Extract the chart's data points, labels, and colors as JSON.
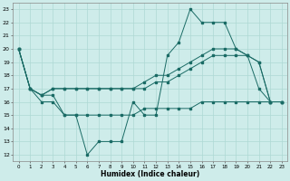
{
  "title": "",
  "xlabel": "Humidex (Indice chaleur)",
  "ylabel": "",
  "xlim": [
    -0.5,
    23.5
  ],
  "ylim": [
    11.5,
    23.5
  ],
  "yticks": [
    12,
    13,
    14,
    15,
    16,
    17,
    18,
    19,
    20,
    21,
    22,
    23
  ],
  "xticks": [
    0,
    1,
    2,
    3,
    4,
    5,
    6,
    7,
    8,
    9,
    10,
    11,
    12,
    13,
    14,
    15,
    16,
    17,
    18,
    19,
    20,
    21,
    22,
    23
  ],
  "bg_color": "#ceecea",
  "grid_color": "#aed8d4",
  "line_color": "#1a6b65",
  "lines": [
    {
      "x": [
        0,
        1,
        2,
        3,
        4,
        5,
        6,
        7,
        8,
        9,
        10,
        11,
        12,
        13,
        14,
        15,
        16,
        17,
        18,
        19,
        20,
        21,
        22,
        23
      ],
      "y": [
        20,
        17,
        16,
        16,
        15,
        15,
        12,
        13,
        13,
        13,
        16,
        15,
        15,
        19.5,
        20.5,
        23,
        22,
        22,
        22,
        20,
        19.5,
        17,
        16,
        16
      ]
    },
    {
      "x": [
        0,
        1,
        2,
        3,
        4,
        5,
        6,
        7,
        8,
        9,
        10,
        11,
        12,
        13,
        14,
        15,
        16,
        17,
        18,
        19,
        20,
        21,
        22,
        23
      ],
      "y": [
        20,
        17,
        16.5,
        17,
        17,
        17,
        17,
        17,
        17,
        17,
        17,
        17.5,
        18,
        18,
        18.5,
        19,
        19.5,
        20,
        20,
        20,
        19.5,
        19,
        16,
        16
      ]
    },
    {
      "x": [
        0,
        1,
        2,
        3,
        4,
        5,
        6,
        7,
        8,
        9,
        10,
        11,
        12,
        13,
        14,
        15,
        16,
        17,
        18,
        19,
        20,
        21,
        22,
        23
      ],
      "y": [
        20,
        17,
        16.5,
        17,
        17,
        17,
        17,
        17,
        17,
        17,
        17,
        17,
        17.5,
        17.5,
        18,
        18.5,
        19,
        19.5,
        19.5,
        19.5,
        19.5,
        19,
        16,
        16
      ]
    },
    {
      "x": [
        0,
        1,
        2,
        3,
        4,
        5,
        6,
        7,
        8,
        9,
        10,
        11,
        12,
        13,
        14,
        15,
        16,
        17,
        18,
        19,
        20,
        21,
        22,
        23
      ],
      "y": [
        20,
        17,
        16.5,
        16.5,
        15,
        15,
        15,
        15,
        15,
        15,
        15,
        15.5,
        15.5,
        15.5,
        15.5,
        15.5,
        16,
        16,
        16,
        16,
        16,
        16,
        16,
        16
      ]
    }
  ]
}
